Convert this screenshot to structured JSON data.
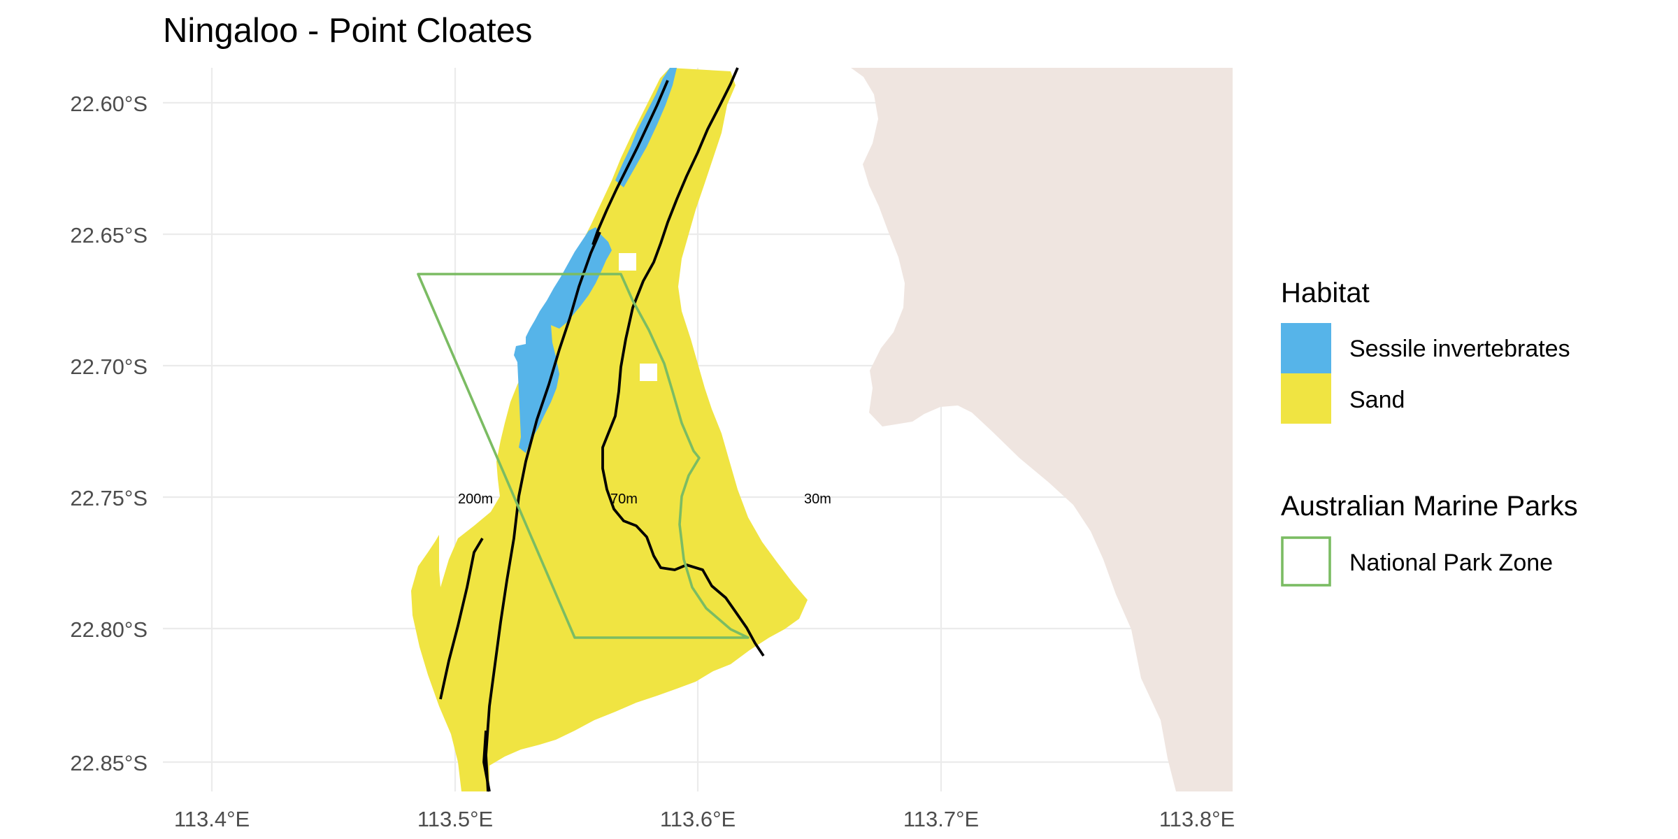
{
  "title": "Ningaloo - Point Cloates",
  "axes": {
    "x_ticks": [
      "113.4°E",
      "113.5°E",
      "113.6°E",
      "113.7°E",
      "113.8°E"
    ],
    "y_ticks": [
      "22.60°S",
      "22.65°S",
      "22.70°S",
      "22.75°S",
      "22.80°S",
      "22.85°S"
    ]
  },
  "contour_labels": [
    "200m",
    "70m",
    "30m"
  ],
  "legend": {
    "habitat": {
      "title": "Habitat",
      "items": [
        {
          "label": "Sessile invertebrates",
          "color": "#56b4e9"
        },
        {
          "label": "Sand",
          "color": "#f0e442"
        }
      ]
    },
    "marine_parks": {
      "title": "Australian Marine Parks",
      "items": [
        {
          "label": "National Park Zone",
          "color": "#7bbc63"
        }
      ]
    }
  },
  "colors": {
    "land": "#efe5e0",
    "sand": "#f0e442",
    "sessile": "#56b4e9",
    "national_park_outline": "#7bbc63",
    "contour": "#000000",
    "grid": "#ebebeb"
  }
}
